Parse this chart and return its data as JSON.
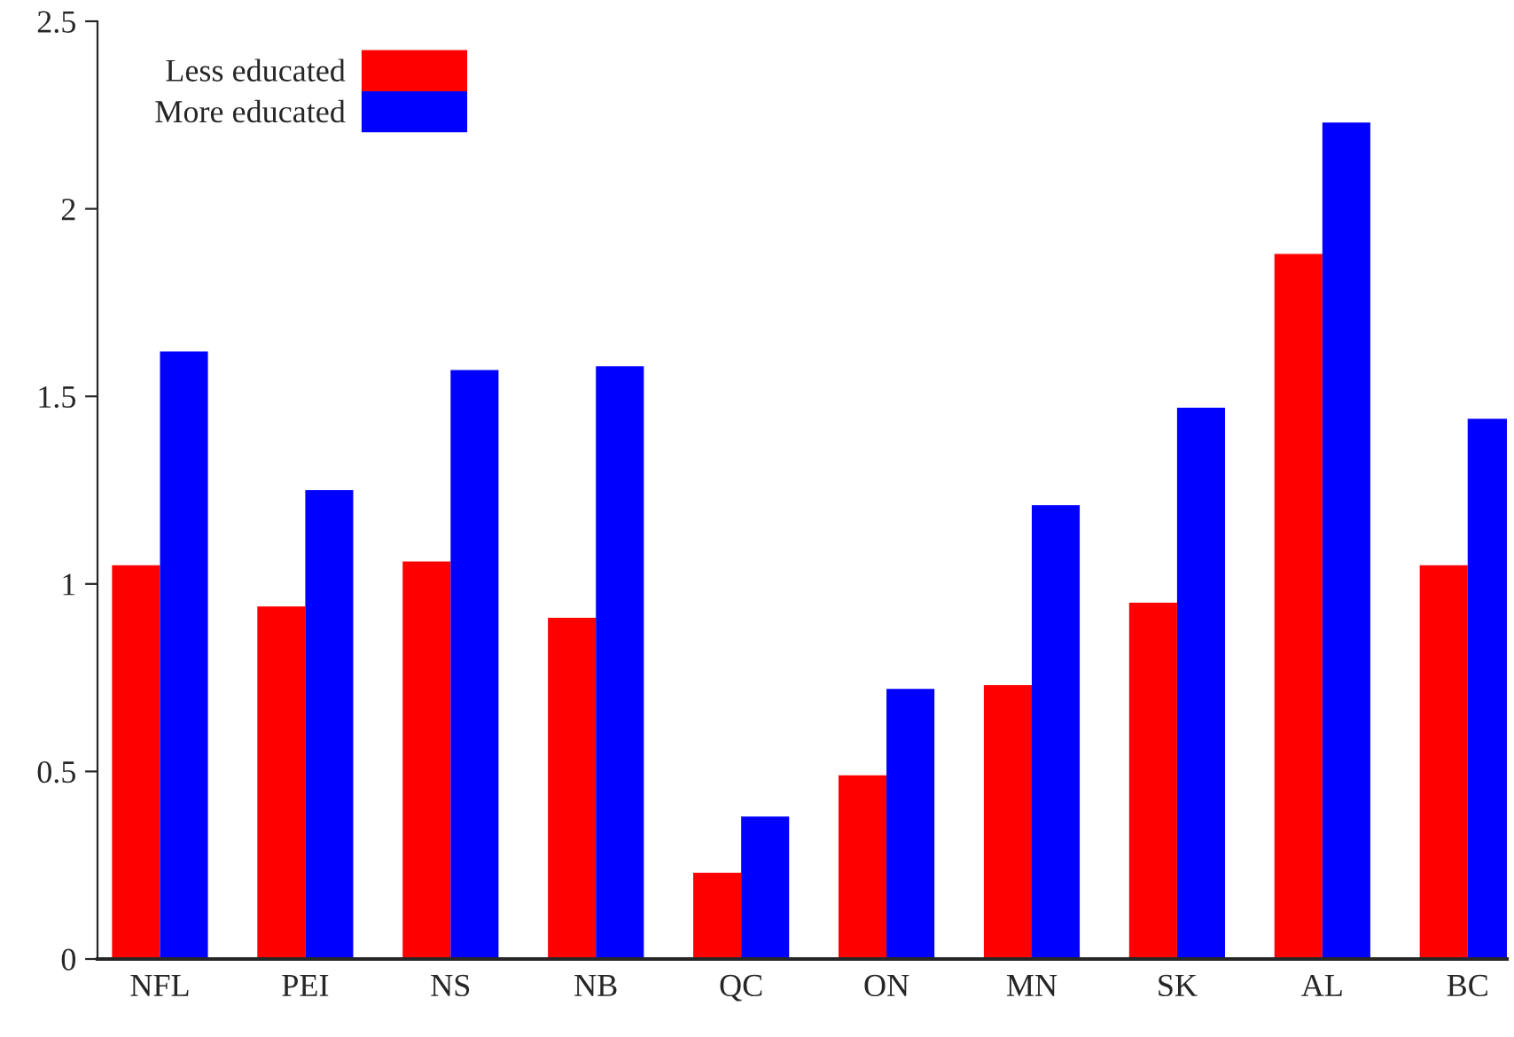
{
  "chart_data": {
    "type": "bar",
    "categories": [
      "NFL",
      "PEI",
      "NS",
      "NB",
      "QC",
      "ON",
      "MN",
      "SK",
      "AL",
      "BC"
    ],
    "series": [
      {
        "name": "Less educated",
        "color": "#ff0000",
        "values": [
          1.05,
          0.94,
          1.06,
          0.91,
          0.23,
          0.49,
          0.73,
          0.95,
          1.88,
          1.05
        ]
      },
      {
        "name": "More educated",
        "color": "#0000ff",
        "values": [
          1.62,
          1.25,
          1.57,
          1.58,
          0.38,
          0.72,
          1.21,
          1.47,
          2.23,
          1.44
        ]
      }
    ],
    "ylim": [
      0,
      2.5
    ],
    "yticks": [
      0,
      0.5,
      1,
      1.5,
      2,
      2.5
    ],
    "grid": false,
    "legend": "top left"
  }
}
